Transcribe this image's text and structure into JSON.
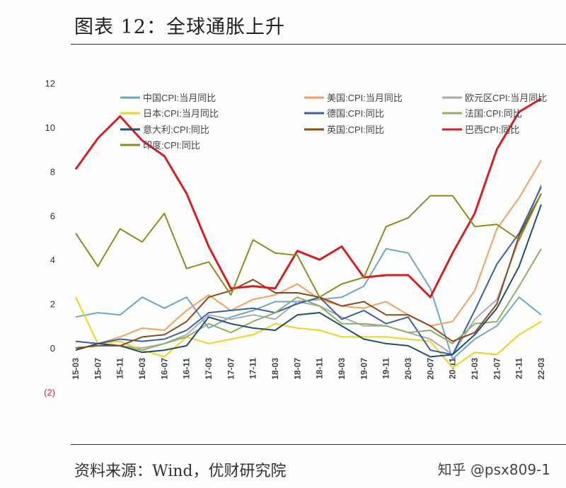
{
  "header": {
    "title": "图表 12：全球通胀上升"
  },
  "footer": {
    "source": "资料来源：Wind，优财研究院",
    "watermark": "知乎 @psx809-1"
  },
  "chart_data": {
    "type": "line",
    "title": "",
    "xlabel": "",
    "ylabel": "",
    "ylim": [
      -2,
      12
    ],
    "yticks": [
      "12",
      "10",
      "8",
      "6",
      "4",
      "2",
      "0",
      "(2)"
    ],
    "ytick_values": [
      12,
      10,
      8,
      6,
      4,
      2,
      0,
      -2
    ],
    "negative_tick_color": "#c0282d",
    "grid": false,
    "legend": "top",
    "x": [
      "15-03",
      "15-07",
      "15-11",
      "16-03",
      "16-07",
      "16-11",
      "17-03",
      "17-07",
      "17-11",
      "18-03",
      "18-07",
      "18-11",
      "19-03",
      "19-07",
      "19-11",
      "20-03",
      "20-07",
      "20-11",
      "21-03",
      "21-07",
      "21-11",
      "22-03"
    ],
    "series": [
      {
        "name": "中国CPI:当月同比",
        "color": "#6fa6c4",
        "values": [
          1.4,
          1.6,
          1.5,
          2.3,
          1.8,
          2.3,
          0.9,
          1.4,
          1.7,
          2.1,
          2.1,
          2.2,
          2.3,
          2.8,
          4.5,
          4.3,
          2.7,
          -0.5,
          0.4,
          1.0,
          2.3,
          1.5
        ]
      },
      {
        "name": "美国:CPI:当月同比",
        "color": "#f0a060",
        "values": [
          -0.1,
          0.2,
          0.5,
          0.9,
          0.8,
          1.7,
          2.4,
          1.7,
          2.2,
          2.4,
          2.9,
          2.2,
          1.9,
          1.8,
          2.1,
          1.5,
          1.0,
          1.2,
          2.6,
          5.4,
          6.8,
          8.5
        ]
      },
      {
        "name": "欧元区CPI:当月同比",
        "color": "#a8a8b8",
        "values": [
          -0.1,
          0.2,
          0.1,
          0.0,
          0.2,
          0.6,
          1.5,
          1.3,
          1.5,
          1.3,
          2.1,
          1.9,
          1.4,
          1.0,
          1.0,
          0.7,
          0.4,
          -0.3,
          1.3,
          2.2,
          4.9,
          7.4
        ]
      },
      {
        "name": "日本:CPI:当月同比",
        "color": "#f0d020",
        "values": [
          2.3,
          0.2,
          0.3,
          -0.1,
          -0.4,
          0.5,
          0.2,
          0.4,
          0.6,
          1.1,
          0.9,
          0.8,
          0.5,
          0.5,
          0.5,
          0.4,
          0.3,
          -0.9,
          -0.2,
          -0.3,
          0.6,
          1.2
        ]
      },
      {
        "name": "德国:CPI:同比",
        "color": "#3a5fa8",
        "values": [
          0.3,
          0.2,
          0.4,
          0.3,
          0.4,
          0.8,
          1.6,
          1.7,
          1.8,
          1.6,
          2.0,
          2.3,
          1.3,
          1.7,
          1.1,
          1.4,
          -0.1,
          -0.3,
          1.7,
          3.8,
          5.2,
          7.3
        ]
      },
      {
        "name": "法国:CPI:同比",
        "color": "#8ab060",
        "values": [
          -0.1,
          0.2,
          0.1,
          -0.1,
          0.2,
          0.5,
          1.1,
          0.7,
          1.2,
          1.6,
          2.3,
          1.9,
          1.1,
          1.1,
          1.0,
          0.7,
          0.8,
          0.2,
          1.1,
          1.2,
          2.8,
          4.5
        ]
      },
      {
        "name": "意大利:CPI:同比",
        "color": "#1e4f6e",
        "values": [
          -0.1,
          0.2,
          0.1,
          -0.2,
          -0.1,
          0.1,
          1.4,
          1.1,
          0.9,
          0.8,
          1.5,
          1.6,
          1.0,
          0.4,
          0.2,
          0.1,
          -0.4,
          -0.3,
          0.6,
          1.8,
          3.7,
          6.5
        ]
      },
      {
        "name": "英国:CPI:同比",
        "color": "#8a4a1a",
        "values": [
          0.0,
          0.1,
          0.1,
          0.5,
          0.6,
          1.2,
          2.3,
          2.6,
          3.1,
          2.5,
          2.5,
          2.3,
          1.9,
          2.1,
          1.5,
          1.5,
          1.0,
          0.3,
          0.7,
          2.0,
          5.1,
          7.0
        ]
      },
      {
        "name": "巴西CPI:同比",
        "color": "#d42020",
        "values": [
          8.1,
          9.5,
          10.5,
          9.4,
          8.7,
          7.0,
          4.6,
          2.7,
          2.8,
          2.7,
          4.4,
          4.0,
          4.6,
          3.2,
          3.3,
          3.3,
          2.3,
          4.3,
          6.1,
          9.0,
          10.7,
          11.3
        ]
      },
      {
        "name": "印度:CPI:同比",
        "color": "#8c8c1e",
        "values": [
          5.2,
          3.7,
          5.4,
          4.8,
          6.1,
          3.6,
          3.9,
          2.4,
          4.9,
          4.3,
          4.2,
          2.3,
          2.9,
          3.2,
          5.5,
          5.9,
          6.9,
          6.9,
          5.5,
          5.6,
          4.9,
          7.0
        ]
      }
    ]
  }
}
